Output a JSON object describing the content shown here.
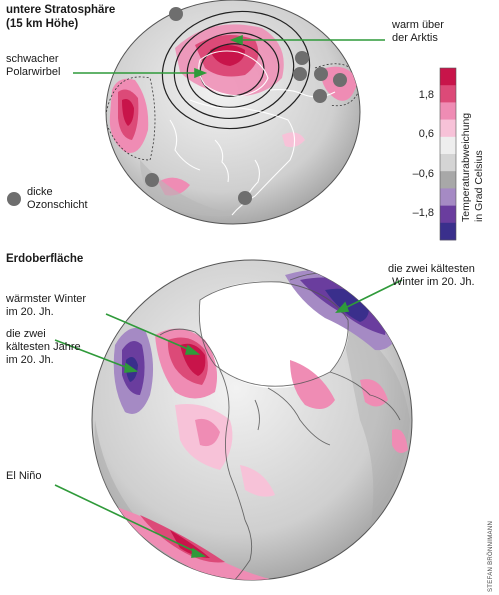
{
  "top_panel": {
    "heading_line1": "untere Stratosphäre",
    "heading_line2": "(15 km Höhe)",
    "label_polar_vortex_line1": "schwacher",
    "label_polar_vortex_line2": "Polarwirbel",
    "label_warm_arctic_line1": "warm über",
    "label_warm_arctic_line2": "der Arktis",
    "label_ozone_line1": "dicke",
    "label_ozone_line2": "Ozonschicht"
  },
  "bottom_panel": {
    "heading": "Erdoberfläche",
    "label_warmest_winter_line1": "wärmster Winter",
    "label_warmest_winter_line2": "im 20. Jh.",
    "label_coldest_years_line1": "die zwei",
    "label_coldest_years_line2": "kältesten Jahre",
    "label_coldest_years_line3": "im 20. Jh.",
    "label_coldest_winter_line1": "die zwei kältesten",
    "label_coldest_winter_line2": "Winter im 20. Jh.",
    "label_el_nino": "El Niño"
  },
  "legend": {
    "title_line1": "Temperaturabweichung",
    "title_line2": "in Grad Celsius",
    "ticks": [
      "1,8",
      "0,6",
      "–0,6",
      "–1,8"
    ],
    "colors": [
      "#c8144a",
      "#dc4a78",
      "#ef8cb4",
      "#f7c2d8",
      "#eeeeee",
      "#d4d4d4",
      "#a8a8a8",
      "#a58ac4",
      "#6a3d9e",
      "#3a2f8c"
    ]
  },
  "credit": "STEFAN BRÖNNIMANN"
}
